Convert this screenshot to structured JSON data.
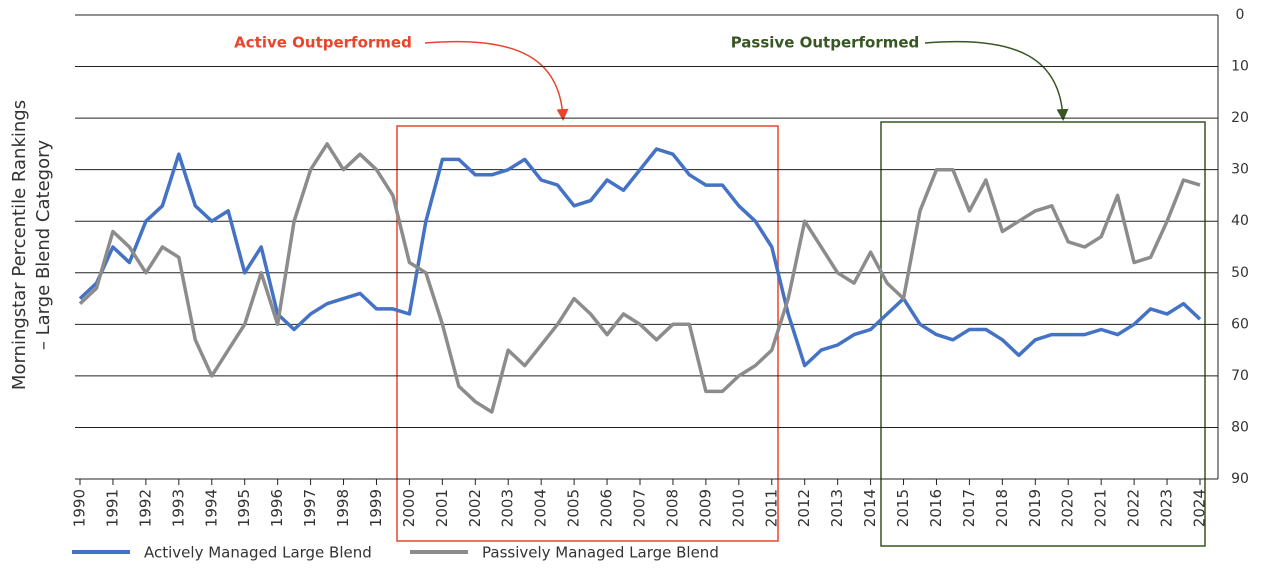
{
  "chart_data": {
    "type": "line",
    "y_label": [
      "Morningstar Percentile Rankings",
      "– Large Blend Category"
    ],
    "annotations": [
      {
        "text": "Active Outperformed",
        "color": "#e8452c"
      },
      {
        "text": "Passive Outperformed",
        "color": "#375623"
      }
    ],
    "x": [
      1990,
      1990.5,
      1991,
      1991.5,
      1992,
      1992.5,
      1993,
      1993.5,
      1994,
      1994.5,
      1995,
      1995.5,
      1996,
      1996.5,
      1997,
      1997.5,
      1998,
      1998.5,
      1999,
      1999.5,
      2000,
      2000.5,
      2001,
      2001.5,
      2002,
      2002.5,
      2003,
      2003.5,
      2004,
      2004.5,
      2005,
      2005.5,
      2006,
      2006.5,
      2007,
      2007.5,
      2008,
      2008.5,
      2009,
      2009.5,
      2010,
      2010.5,
      2011,
      2011.5,
      2012,
      2012.5,
      2013,
      2013.5,
      2014,
      2014.5,
      2015,
      2015.5,
      2016,
      2016.5,
      2017,
      2017.5,
      2018,
      2018.5,
      2019,
      2019.5,
      2020,
      2020.5,
      2021,
      2021.5,
      2022,
      2022.5,
      2023,
      2023.5,
      2024
    ],
    "series": [
      {
        "name": "Actively Managed Large Blend",
        "color": "#4472c4",
        "values": [
          55,
          52,
          45,
          48,
          40,
          37,
          27,
          37,
          40,
          38,
          50,
          45,
          58,
          61,
          58,
          56,
          55,
          54,
          57,
          57,
          58,
          40,
          28,
          28,
          31,
          31,
          30,
          28,
          32,
          33,
          37,
          36,
          32,
          34,
          30,
          26,
          27,
          31,
          33,
          33,
          37,
          40,
          45,
          58,
          68,
          65,
          64,
          62,
          61,
          58,
          55,
          60,
          62,
          63,
          61,
          61,
          63,
          66,
          63,
          62,
          62,
          62,
          61,
          62,
          60,
          57,
          58,
          56,
          59
        ]
      },
      {
        "name": "Passively Managed Large Blend",
        "color": "#8c8c8c",
        "values": [
          56,
          53,
          42,
          45,
          50,
          45,
          47,
          63,
          70,
          65,
          60,
          50,
          60,
          40,
          30,
          25,
          30,
          27,
          30,
          35,
          48,
          50,
          60,
          72,
          75,
          77,
          65,
          68,
          64,
          60,
          55,
          58,
          62,
          58,
          60,
          63,
          60,
          60,
          73,
          73,
          70,
          68,
          65,
          55,
          40,
          45,
          50,
          52,
          46,
          52,
          55,
          38,
          30,
          30,
          38,
          32,
          42,
          40,
          38,
          37,
          44,
          45,
          43,
          35,
          48,
          47,
          40,
          32,
          33
        ]
      }
    ],
    "xlim": [
      1990,
      2024
    ],
    "xticks": [
      1990,
      1991,
      1992,
      1993,
      1994,
      1995,
      1996,
      1997,
      1998,
      1999,
      2000,
      2001,
      2002,
      2003,
      2004,
      2005,
      2006,
      2007,
      2008,
      2009,
      2010,
      2011,
      2012,
      2013,
      2014,
      2015,
      2016,
      2017,
      2018,
      2019,
      2020,
      2021,
      2022,
      2023,
      2024
    ],
    "ylim": [
      90,
      0
    ],
    "yticks": [
      0,
      10,
      20,
      30,
      40,
      50,
      60,
      70,
      80,
      90
    ],
    "y_axis_side": "right",
    "grid": true
  }
}
